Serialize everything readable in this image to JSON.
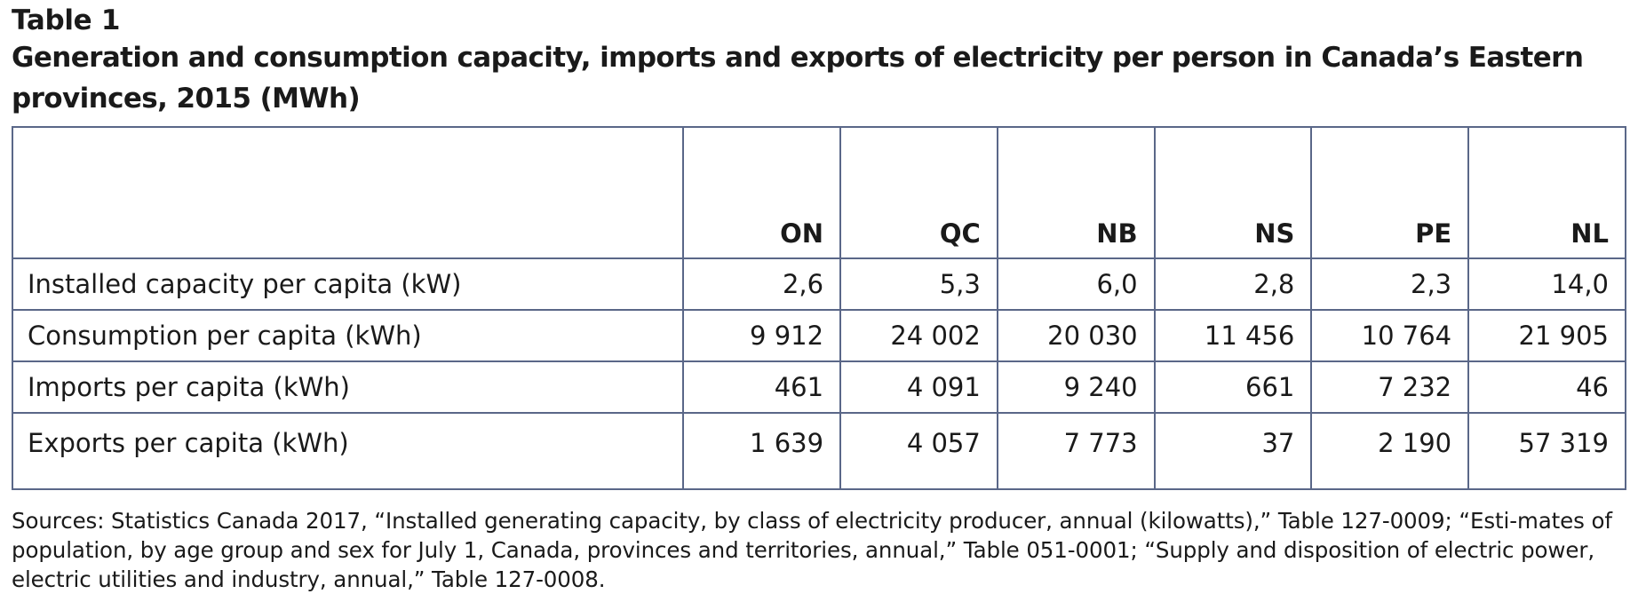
{
  "table_label": "Table 1",
  "title": "Generation and consumption capacity, imports and exports of electricity per person in Canada’s Eastern provinces, 2015 (MWh)",
  "columns": [
    "ON",
    "QC",
    "NB",
    "NS",
    "PE",
    "NL"
  ],
  "rows": [
    {
      "label": "Installed capacity per capita (kW)",
      "values": [
        "2,6",
        "5,3",
        "6,0",
        "2,8",
        "2,3",
        "14,0"
      ]
    },
    {
      "label": "Consumption per capita (kWh)",
      "values": [
        "9 912",
        "24 002",
        "20 030",
        "11 456",
        "10 764",
        "21 905"
      ]
    },
    {
      "label": "Imports per capita (kWh)",
      "values": [
        "461",
        "4 091",
        "9 240",
        "661",
        "7 232",
        "46"
      ]
    },
    {
      "label": "Exports per capita (kWh)",
      "values": [
        "1 639",
        "4 057",
        "7 773",
        "37",
        "2 190",
        "57 319"
      ]
    }
  ],
  "sources": "Sources: Statistics Canada 2017, “Installed generating capacity, by class of electricity producer, annual (kilowatts),” Table 127-0009; “Esti-mates of population, by age group and sex for July 1, Canada, provinces and territories, annual,” Table 051-0001; “Supply and disposition of electric power, electric utilities and industry, annual,” Table 127-0008.",
  "colors": {
    "border": "#5a6788",
    "text": "#1a1a1a"
  }
}
